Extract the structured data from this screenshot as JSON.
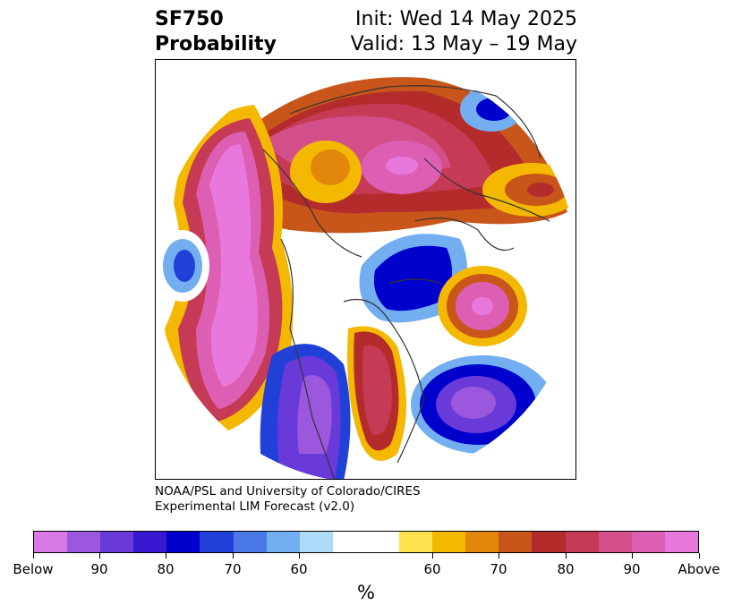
{
  "title": {
    "left_line1": "SF750",
    "left_line2": "Probability",
    "right_line1": "Init: Wed 14 May 2025",
    "right_line2": "Valid: 13 May – 19 May"
  },
  "credits": {
    "line1": "NOAA/PSL and University of Colorado/CIRES",
    "line2": "Experimental LIM Forecast (v2.0)"
  },
  "colorbar": {
    "unit": "%",
    "colors": [
      "#d879e6",
      "#9b58de",
      "#6a3ad8",
      "#3a17d0",
      "#0000cc",
      "#2040d8",
      "#4a78e8",
      "#72aef0",
      "#acdcfa",
      "#ffffff",
      "#ffffff",
      "#ffe14d",
      "#f4b800",
      "#e0870c",
      "#c8561a",
      "#b32b2b",
      "#c53a55",
      "#d24f8a",
      "#dc5fb3",
      "#e978dc"
    ],
    "ticks": [
      "Below",
      "90",
      "80",
      "70",
      "60",
      "60",
      "70",
      "80",
      "90",
      "Above"
    ]
  }
}
